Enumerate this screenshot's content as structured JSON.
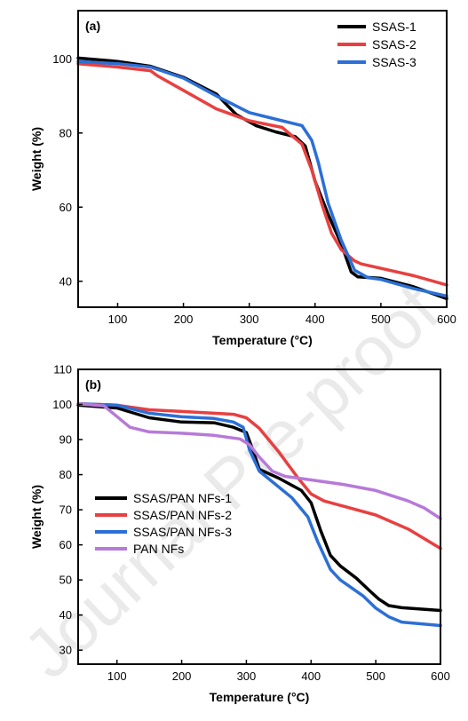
{
  "watermark": "Journal Pre-proof",
  "chart_data": [
    {
      "type": "line",
      "panel_label": "(a)",
      "xlabel": "Temperature (°C)",
      "ylabel": "Weight (%)",
      "xlim": [
        40,
        600
      ],
      "ylim": [
        33,
        113
      ],
      "xticks": [
        100,
        200,
        300,
        400,
        500,
        600
      ],
      "yticks": [
        40,
        60,
        80,
        100
      ],
      "legend": "top-right",
      "series": [
        {
          "name": "SSAS-1",
          "color": "#000000",
          "x": [
            40,
            100,
            150,
            200,
            250,
            280,
            310,
            340,
            370,
            385,
            400,
            420,
            440,
            455,
            465,
            500,
            550,
            600
          ],
          "y": [
            100.2,
            99.3,
            98,
            95,
            90.5,
            85,
            82,
            80.3,
            79,
            76.5,
            67,
            58,
            50,
            42.5,
            41.2,
            40.8,
            38.5,
            35.3
          ]
        },
        {
          "name": "SSAS-2",
          "color": "#e84040",
          "x": [
            40,
            100,
            150,
            160,
            200,
            250,
            300,
            350,
            380,
            395,
            410,
            425,
            440,
            460,
            470,
            500,
            550,
            600
          ],
          "y": [
            98.7,
            97.8,
            96.8,
            95.5,
            91.5,
            86.5,
            83.3,
            81.5,
            77,
            70,
            61,
            53,
            48.5,
            45.5,
            44.7,
            43.5,
            41.5,
            39
          ]
        },
        {
          "name": "SSAS-3",
          "color": "#2c6fd6",
          "x": [
            40,
            100,
            150,
            200,
            250,
            300,
            350,
            380,
            395,
            405,
            420,
            440,
            460,
            480,
            500,
            550,
            600
          ],
          "y": [
            99.3,
            98.7,
            97.8,
            94.8,
            90,
            85.5,
            83.3,
            82,
            78,
            72,
            61,
            51,
            43,
            41,
            40.5,
            38,
            36
          ]
        }
      ]
    },
    {
      "type": "line",
      "panel_label": "(b)",
      "xlabel": "Temperature (°C)",
      "ylabel": "Weight (%)",
      "xlim": [
        40,
        600
      ],
      "ylim": [
        26,
        110
      ],
      "xticks": [
        100,
        200,
        300,
        400,
        500,
        600
      ],
      "yticks": [
        30,
        40,
        50,
        60,
        70,
        80,
        90,
        100,
        110
      ],
      "legend": "middle-left",
      "series": [
        {
          "name": "SSAS/PAN NFs-1",
          "color": "#000000",
          "x": [
            40,
            100,
            150,
            200,
            250,
            280,
            300,
            310,
            320,
            350,
            385,
            400,
            415,
            430,
            445,
            470,
            490,
            505,
            520,
            540,
            600
          ],
          "y": [
            99.8,
            99,
            96.2,
            95,
            94.8,
            93.5,
            92,
            87,
            81.5,
            79,
            75.5,
            72,
            64,
            57,
            54,
            50.5,
            47,
            44.5,
            42.7,
            42.1,
            41.3
          ]
        },
        {
          "name": "SSAS/PAN NFs-2",
          "color": "#e84040",
          "x": [
            40,
            100,
            150,
            200,
            250,
            280,
            300,
            320,
            350,
            380,
            400,
            420,
            450,
            500,
            550,
            600
          ],
          "y": [
            100.2,
            99.8,
            98.5,
            98,
            97.5,
            97.2,
            96.2,
            93.2,
            86.5,
            79,
            74.5,
            72.5,
            71,
            68.5,
            64.5,
            59
          ]
        },
        {
          "name": "SSAS/PAN NFs-3",
          "color": "#2c6fd6",
          "x": [
            40,
            100,
            150,
            200,
            250,
            280,
            295,
            305,
            320,
            340,
            370,
            395,
            410,
            430,
            445,
            480,
            500,
            520,
            540,
            600
          ],
          "y": [
            100.2,
            99.8,
            97.5,
            96.5,
            96,
            95,
            93.5,
            87,
            81,
            78,
            73.5,
            68,
            61,
            53,
            50,
            45.5,
            42,
            39.5,
            38,
            37
          ]
        },
        {
          "name": "PAN NFs",
          "color": "#b77ad8",
          "x": [
            40,
            80,
            120,
            150,
            200,
            250,
            290,
            305,
            320,
            340,
            360,
            400,
            450,
            500,
            550,
            575,
            600
          ],
          "y": [
            100.2,
            99.6,
            93.5,
            92.2,
            91.8,
            91.2,
            90.2,
            88.5,
            85,
            81,
            79.5,
            78.5,
            77.2,
            75.5,
            72.5,
            70.5,
            67.5
          ]
        }
      ]
    }
  ]
}
